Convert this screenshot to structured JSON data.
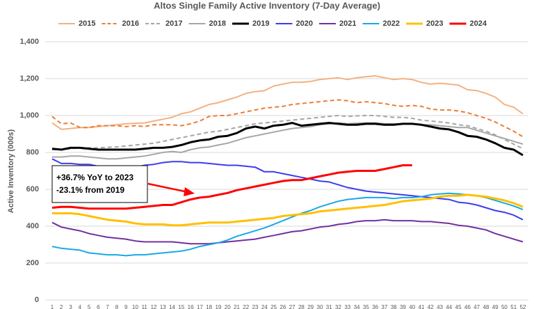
{
  "chart_data": {
    "type": "line",
    "title": "Altos Single Family Active Inventory (7-Day Average)",
    "y_label": "Active Inventory (000s)",
    "annotation": [
      "+36.7% YoY to 2023",
      "-23.1% from 2019"
    ],
    "x": [
      1,
      2,
      3,
      4,
      5,
      6,
      7,
      8,
      9,
      10,
      11,
      12,
      13,
      14,
      15,
      16,
      17,
      18,
      19,
      20,
      21,
      22,
      23,
      24,
      25,
      26,
      27,
      28,
      29,
      30,
      31,
      32,
      33,
      34,
      35,
      36,
      37,
      38,
      39,
      40,
      41,
      42,
      43,
      44,
      45,
      46,
      47,
      48,
      49,
      50,
      51,
      52
    ],
    "xlim": [
      1,
      52
    ],
    "xticks": [
      1,
      2,
      3,
      4,
      5,
      6,
      7,
      8,
      9,
      10,
      11,
      12,
      13,
      14,
      15,
      16,
      17,
      18,
      19,
      20,
      21,
      22,
      23,
      24,
      25,
      26,
      27,
      28,
      29,
      30,
      31,
      32,
      33,
      34,
      35,
      36,
      37,
      38,
      39,
      40,
      41,
      42,
      43,
      44,
      45,
      46,
      47,
      48,
      49,
      50,
      51,
      52
    ],
    "ylim": [
      0,
      1400
    ],
    "yticks": [
      0,
      200,
      400,
      600,
      800,
      {
        "value": 1000,
        "label": "1,000"
      },
      {
        "value": 1200,
        "label": "1,200"
      },
      {
        "value": 1400,
        "label": "1,400"
      }
    ],
    "grid": true,
    "series": [
      {
        "name": "2015",
        "color": "#f4b183",
        "dash": false,
        "width": 2,
        "values": [
          960,
          925,
          930,
          935,
          935,
          940,
          945,
          950,
          955,
          958,
          960,
          970,
          980,
          990,
          1010,
          1020,
          1040,
          1060,
          1070,
          1085,
          1100,
          1120,
          1130,
          1135,
          1160,
          1170,
          1180,
          1180,
          1185,
          1195,
          1200,
          1205,
          1195,
          1205,
          1210,
          1215,
          1205,
          1195,
          1200,
          1195,
          1180,
          1170,
          1175,
          1170,
          1165,
          1140,
          1135,
          1120,
          1100,
          1060,
          1045,
          1010
        ]
      },
      {
        "name": "2016",
        "color": "#ed7d31",
        "dash": true,
        "width": 2,
        "values": [
          995,
          955,
          960,
          935,
          935,
          945,
          945,
          945,
          940,
          945,
          940,
          950,
          950,
          950,
          945,
          955,
          970,
          995,
          1000,
          1000,
          1010,
          1020,
          1030,
          1040,
          1045,
          1050,
          1060,
          1065,
          1070,
          1075,
          1080,
          1085,
          1080,
          1070,
          1075,
          1070,
          1065,
          1055,
          1050,
          1055,
          1050,
          1035,
          1030,
          1030,
          1025,
          1015,
          1000,
          985,
          965,
          940,
          915,
          885
        ]
      },
      {
        "name": "2017",
        "color": "#a5a5a5",
        "dash": true,
        "width": 2,
        "values": [
          815,
          815,
          820,
          825,
          825,
          825,
          828,
          830,
          835,
          840,
          845,
          850,
          860,
          870,
          880,
          890,
          900,
          910,
          915,
          925,
          935,
          945,
          955,
          960,
          965,
          970,
          975,
          980,
          985,
          990,
          995,
          1000,
          995,
          998,
          1000,
          1000,
          995,
          990,
          990,
          985,
          975,
          970,
          965,
          960,
          950,
          945,
          930,
          915,
          895,
          870,
          845,
          820
        ]
      },
      {
        "name": "2018",
        "color": "#a6a6a6",
        "dash": false,
        "width": 2,
        "values": [
          775,
          775,
          780,
          780,
          775,
          770,
          765,
          765,
          770,
          775,
          780,
          790,
          800,
          805,
          800,
          815,
          825,
          830,
          840,
          850,
          865,
          880,
          890,
          900,
          910,
          920,
          930,
          935,
          940,
          950,
          955,
          960,
          955,
          958,
          960,
          960,
          955,
          955,
          955,
          955,
          950,
          950,
          945,
          940,
          935,
          935,
          920,
          905,
          890,
          875,
          860,
          845
        ]
      },
      {
        "name": "2019",
        "color": "#000000",
        "dash": false,
        "width": 3,
        "values": [
          820,
          815,
          825,
          825,
          820,
          815,
          815,
          815,
          815,
          815,
          820,
          825,
          825,
          830,
          840,
          855,
          865,
          870,
          885,
          890,
          905,
          930,
          940,
          930,
          945,
          950,
          960,
          945,
          950,
          955,
          960,
          955,
          950,
          950,
          955,
          955,
          950,
          950,
          955,
          955,
          950,
          940,
          930,
          925,
          910,
          890,
          885,
          870,
          850,
          825,
          815,
          785
        ]
      },
      {
        "name": "2020",
        "color": "#3c3cf0",
        "dash": false,
        "width": 2,
        "values": [
          765,
          740,
          740,
          735,
          735,
          725,
          725,
          725,
          720,
          720,
          730,
          735,
          745,
          750,
          750,
          745,
          745,
          740,
          735,
          730,
          730,
          725,
          720,
          695,
          695,
          685,
          675,
          665,
          655,
          645,
          640,
          625,
          610,
          600,
          590,
          585,
          580,
          575,
          570,
          565,
          560,
          555,
          550,
          545,
          530,
          525,
          515,
          500,
          485,
          475,
          460,
          435
        ]
      },
      {
        "name": "2021",
        "color": "#7030a0",
        "dash": false,
        "width": 2,
        "values": [
          420,
          395,
          385,
          375,
          360,
          350,
          340,
          335,
          330,
          320,
          315,
          315,
          315,
          315,
          310,
          305,
          305,
          305,
          310,
          315,
          320,
          325,
          330,
          340,
          350,
          360,
          370,
          375,
          385,
          395,
          400,
          410,
          415,
          425,
          430,
          430,
          435,
          430,
          430,
          430,
          425,
          425,
          420,
          415,
          405,
          400,
          390,
          380,
          360,
          345,
          330,
          315
        ]
      },
      {
        "name": "2022",
        "color": "#1aa7e8",
        "dash": false,
        "width": 2,
        "values": [
          290,
          280,
          275,
          270,
          255,
          250,
          245,
          245,
          240,
          245,
          245,
          250,
          255,
          260,
          265,
          275,
          290,
          300,
          310,
          325,
          345,
          360,
          375,
          390,
          410,
          430,
          450,
          470,
          485,
          505,
          520,
          535,
          545,
          550,
          555,
          555,
          555,
          550,
          555,
          555,
          560,
          570,
          575,
          578,
          575,
          570,
          565,
          555,
          540,
          525,
          510,
          490
        ]
      },
      {
        "name": "2023",
        "color": "#ffc000",
        "dash": false,
        "width": 3,
        "values": [
          470,
          470,
          470,
          465,
          455,
          445,
          435,
          430,
          425,
          415,
          410,
          410,
          410,
          405,
          405,
          410,
          415,
          420,
          420,
          420,
          425,
          430,
          435,
          440,
          445,
          455,
          460,
          465,
          470,
          480,
          485,
          490,
          495,
          500,
          505,
          510,
          515,
          525,
          535,
          540,
          545,
          550,
          560,
          565,
          565,
          570,
          565,
          560,
          550,
          540,
          525,
          505
        ]
      },
      {
        "name": "2024",
        "color": "#ff0000",
        "dash": false,
        "width": 3,
        "values": [
          500,
          505,
          505,
          500,
          495,
          495,
          495,
          495,
          495,
          500,
          505,
          510,
          515,
          515,
          530,
          545,
          555,
          560,
          570,
          580,
          595,
          605,
          615,
          625,
          635,
          645,
          650,
          650,
          660,
          670,
          680,
          690,
          695,
          700,
          700,
          700,
          710,
          720,
          730,
          730,
          null,
          null,
          null,
          null,
          null,
          null,
          null,
          null,
          null,
          null,
          null,
          null
        ]
      }
    ]
  }
}
